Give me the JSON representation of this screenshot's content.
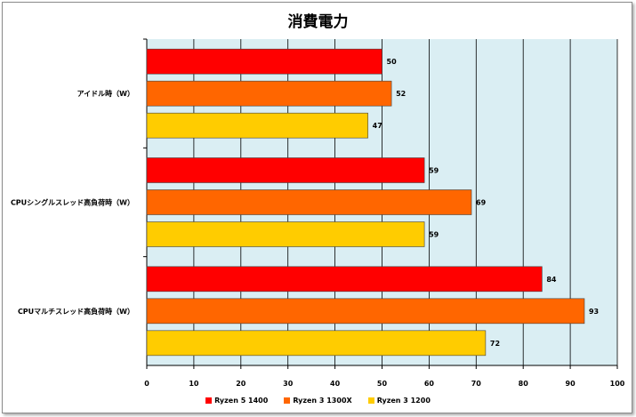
{
  "chart_data": {
    "type": "bar",
    "orientation": "horizontal",
    "title": "消費電力",
    "categories": [
      "アイドル時（W）",
      "CPUシングルスレッド高負荷時（W）",
      "CPUマルチスレッド高負荷時（W）"
    ],
    "series": [
      {
        "name": "Ryzen 5 1400",
        "color": "#ff0000",
        "values": [
          50,
          59,
          84
        ]
      },
      {
        "name": "Ryzen 3 1300X",
        "color": "#ff6600",
        "values": [
          52,
          69,
          93
        ]
      },
      {
        "name": "Ryzen 3 1200",
        "color": "#ffcc00",
        "values": [
          47,
          59,
          72
        ]
      }
    ],
    "xlim": [
      0,
      100
    ],
    "xticks": [
      0,
      10,
      20,
      30,
      40,
      50,
      60,
      70,
      80,
      90,
      100
    ],
    "grid": true,
    "plot_background": "#daeef3",
    "legend_position": "bottom"
  }
}
